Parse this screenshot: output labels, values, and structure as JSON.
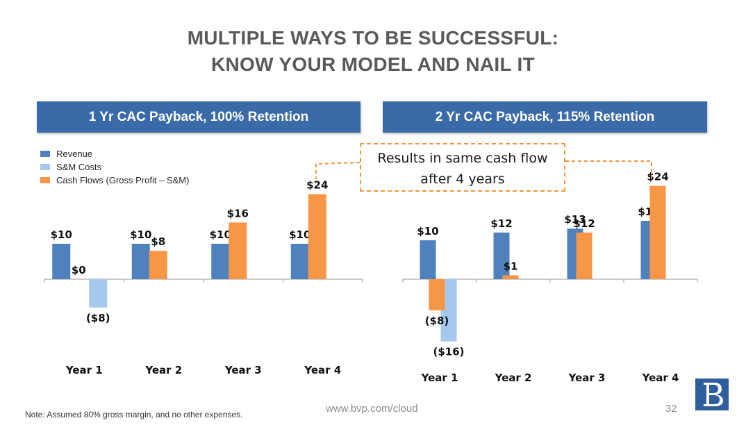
{
  "slide": {
    "title_line1": "MULTIPLE WAYS TO BE SUCCESSFUL:",
    "title_line2": "KNOW YOUR MODEL AND NAIL IT",
    "left_banner": "1 Yr CAC Payback, 100% Retention",
    "right_banner": "2 Yr CAC Payback, 115% Retention",
    "callout_line1": "Results in same cash flow",
    "callout_line2": "after 4 years",
    "note": "Note: Assumed  80% gross margin, and no other expenses.",
    "url": "www.bvp.com/cloud",
    "page_number": "32"
  },
  "colors": {
    "revenue": "#4f81bd",
    "sm_costs": "#a6c8ec",
    "cash_flows": "#f79646",
    "banner": "#3a6aa8",
    "callout_border": "#f0963c",
    "logo": "#2e5e9e"
  },
  "legend": [
    {
      "label": "Revenue",
      "color": "#4f81bd"
    },
    {
      "label": "S&M Costs",
      "color": "#a6c8ec"
    },
    {
      "label": "Cash Flows (Gross Profit – S&M)",
      "color": "#f79646"
    }
  ],
  "chart_data": [
    {
      "type": "bar",
      "title": "1 Yr CAC Payback, 100% Retention",
      "categories": [
        "Year 1",
        "Year 2",
        "Year 3",
        "Year 4"
      ],
      "series": [
        {
          "name": "Revenue",
          "values": [
            10,
            10,
            10,
            10
          ],
          "labels": [
            "$10",
            "$10",
            "$10",
            "$10"
          ]
        },
        {
          "name": "S&M Costs",
          "values": [
            -8,
            0,
            0,
            0
          ],
          "labels": [
            "($8)",
            "",
            "",
            ""
          ]
        },
        {
          "name": "Cash Flows (Gross Profit – S&M)",
          "values": [
            0,
            8,
            16,
            24
          ],
          "labels": [
            "$0",
            "$8",
            "$16",
            "$24"
          ]
        }
      ]
    },
    {
      "type": "bar",
      "title": "2 Yr CAC Payback, 115% Retention",
      "categories": [
        "Year 1",
        "Year 2",
        "Year 3",
        "Year 4"
      ],
      "series": [
        {
          "name": "Revenue",
          "values": [
            10,
            12,
            13,
            15
          ],
          "labels": [
            "$10",
            "$12",
            "$13",
            "$15"
          ]
        },
        {
          "name": "S&M Costs",
          "values": [
            -16,
            0,
            0,
            0
          ],
          "labels": [
            "($16)",
            "",
            "",
            ""
          ]
        },
        {
          "name": "Cash Flows (Gross Profit – S&M)",
          "values": [
            -8,
            1,
            12,
            24
          ],
          "labels": [
            "($8)",
            "$1",
            "$12",
            "$24"
          ]
        }
      ]
    }
  ]
}
